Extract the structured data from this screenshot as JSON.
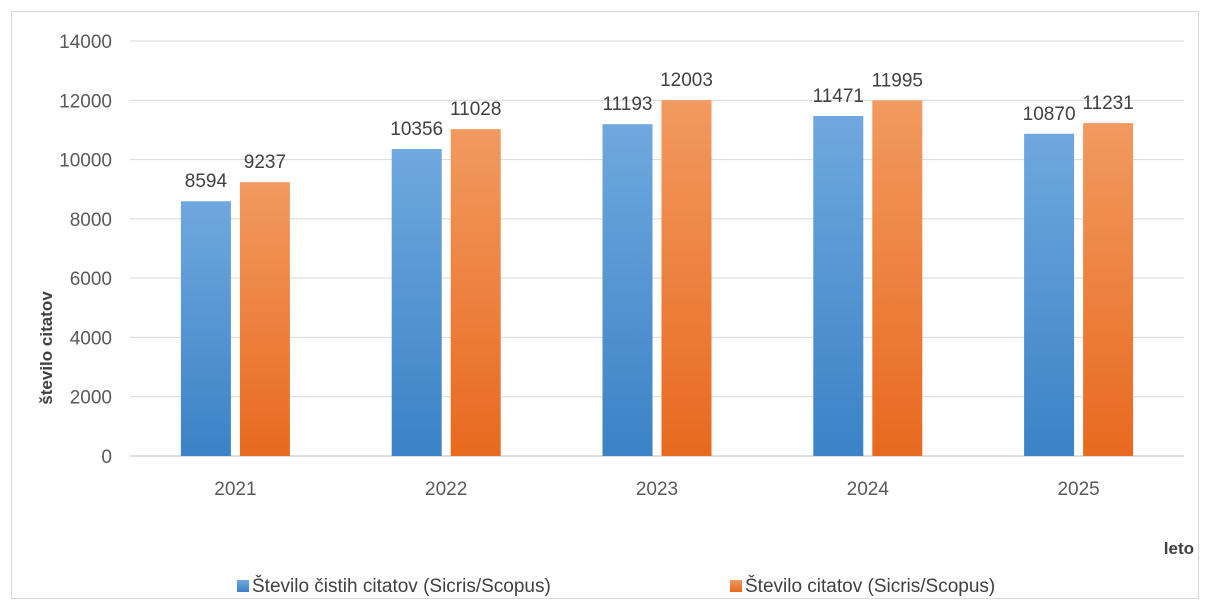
{
  "chart_data": {
    "type": "bar",
    "title": "",
    "xlabel": "leto",
    "ylabel": "število citatov",
    "categories": [
      "2021",
      "2022",
      "2023",
      "2024",
      "2025"
    ],
    "series": [
      {
        "name": "Število čistih citatov (Sicris/Scopus)",
        "values": [
          8594,
          10356,
          11193,
          11471,
          10870
        ],
        "color": "#4a8fd4"
      },
      {
        "name": "Število citatov (Sicris/Scopus)",
        "values": [
          9237,
          11028,
          12003,
          11995,
          11231
        ],
        "color": "#f07f2e"
      }
    ],
    "ylim": [
      0,
      14000
    ],
    "yticks": [
      0,
      2000,
      4000,
      6000,
      8000,
      10000,
      12000,
      14000
    ],
    "grid": true,
    "legend_position": "bottom",
    "data_labels": true
  }
}
